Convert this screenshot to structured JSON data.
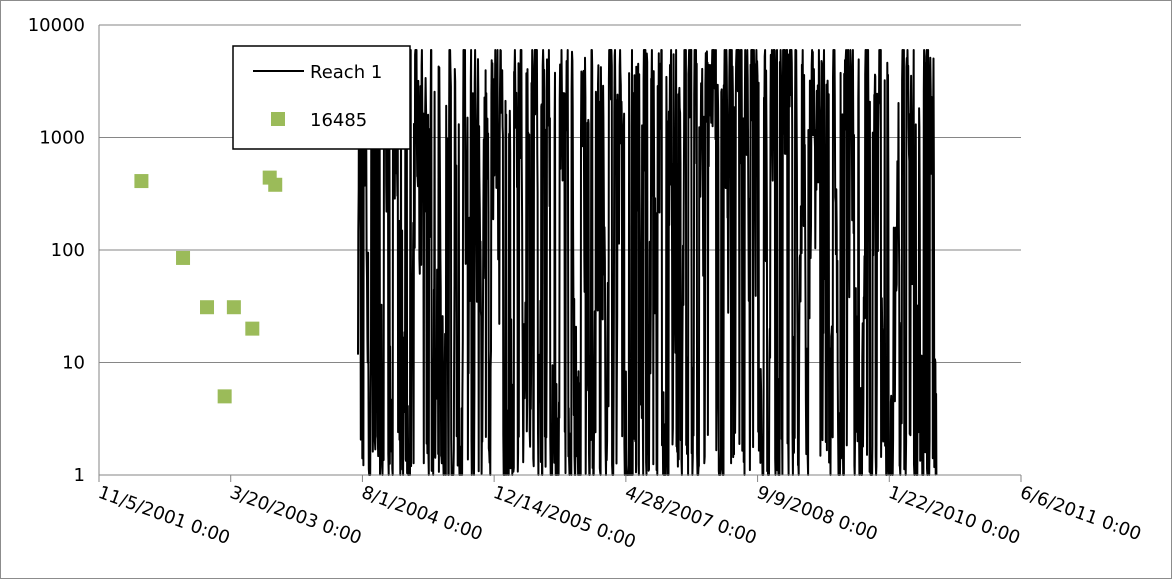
{
  "chart_data": {
    "type": "line",
    "title": "",
    "xlabel": "",
    "ylabel": "",
    "y_scale": "log",
    "ylim": [
      1,
      10000
    ],
    "y_ticks": [
      "1",
      "10",
      "100",
      "1000",
      "10000"
    ],
    "x_ticks": [
      "11/5/2001 0:00",
      "3/20/2003 0:00",
      "8/1/2004 0:00",
      "12/14/2005 0:00",
      "4/28/2007 0:00",
      "9/9/2008 0:00",
      "1/22/2010 0:00",
      "6/6/2011 0:00"
    ],
    "xlim": [
      "2001-11-05",
      "2011-06-06"
    ],
    "grid": "horizontal",
    "legend": {
      "position": "top-left",
      "entries": [
        "Reach 1",
        "16485"
      ]
    },
    "series": [
      {
        "name": "Reach 1",
        "type": "line",
        "color": "#000000",
        "start": "2004-07-15",
        "end": "2010-07-20",
        "min": 1,
        "max": 6000
      },
      {
        "name": "16485",
        "type": "scatter",
        "color": "#9bbb59",
        "points": [
          {
            "x": "2002-04-15",
            "y": 410
          },
          {
            "x": "2002-09-20",
            "y": 85
          },
          {
            "x": "2002-12-20",
            "y": 31
          },
          {
            "x": "2003-02-25",
            "y": 5
          },
          {
            "x": "2003-04-01",
            "y": 31
          },
          {
            "x": "2003-06-10",
            "y": 20
          },
          {
            "x": "2003-08-15",
            "y": 440
          },
          {
            "x": "2003-09-05",
            "y": 380
          }
        ]
      }
    ]
  }
}
